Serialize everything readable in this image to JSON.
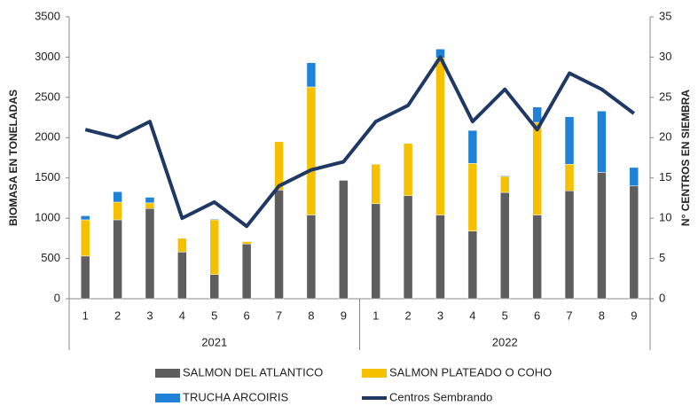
{
  "chart_data": {
    "type": "bar-line",
    "groups": [
      {
        "label": "2021",
        "categories": [
          "1",
          "2",
          "3",
          "4",
          "5",
          "6",
          "7",
          "8",
          "9"
        ]
      },
      {
        "label": "2022",
        "categories": [
          "1",
          "2",
          "3",
          "4",
          "5",
          "6",
          "7",
          "8",
          "9"
        ]
      }
    ],
    "y_label": "BIOMASA  EN TONELADAS",
    "y2_label": "N° CENTROS  EN SIEMBRA",
    "ylim": [
      0,
      3500
    ],
    "yticks": [
      0,
      500,
      1000,
      1500,
      2000,
      2500,
      3000,
      3500
    ],
    "y2lim": [
      0,
      35
    ],
    "y2ticks": [
      0,
      5,
      10,
      15,
      20,
      25,
      30,
      35
    ],
    "stacked": true,
    "series": [
      {
        "name": "SALMON DEL ATLANTICO",
        "color": "#5e5e5e",
        "type": "bar",
        "values": [
          530,
          980,
          1120,
          580,
          300,
          680,
          1350,
          1040,
          1470,
          1180,
          1280,
          1040,
          840,
          1320,
          1040,
          1340,
          1570,
          1400
        ]
      },
      {
        "name": "SALMON PLATEADO O COHO",
        "color": "#f5c000",
        "type": "bar",
        "values": [
          450,
          220,
          70,
          170,
          680,
          30,
          600,
          1590,
          0,
          490,
          650,
          1950,
          840,
          200,
          1150,
          330,
          0,
          0
        ]
      },
      {
        "name": "TRUCHA ARCOIRIS",
        "color": "#1f82d6",
        "type": "bar",
        "values": [
          50,
          130,
          70,
          0,
          10,
          0,
          0,
          300,
          0,
          0,
          0,
          110,
          410,
          10,
          190,
          590,
          760,
          230
        ]
      },
      {
        "name": "Centros Sembrando",
        "color": "#1f3864",
        "type": "line",
        "axis": "y2",
        "values": [
          21,
          20,
          22,
          10,
          12,
          9,
          14,
          16,
          17,
          22,
          24,
          30,
          22,
          26,
          21,
          28,
          26,
          23
        ]
      }
    ]
  }
}
